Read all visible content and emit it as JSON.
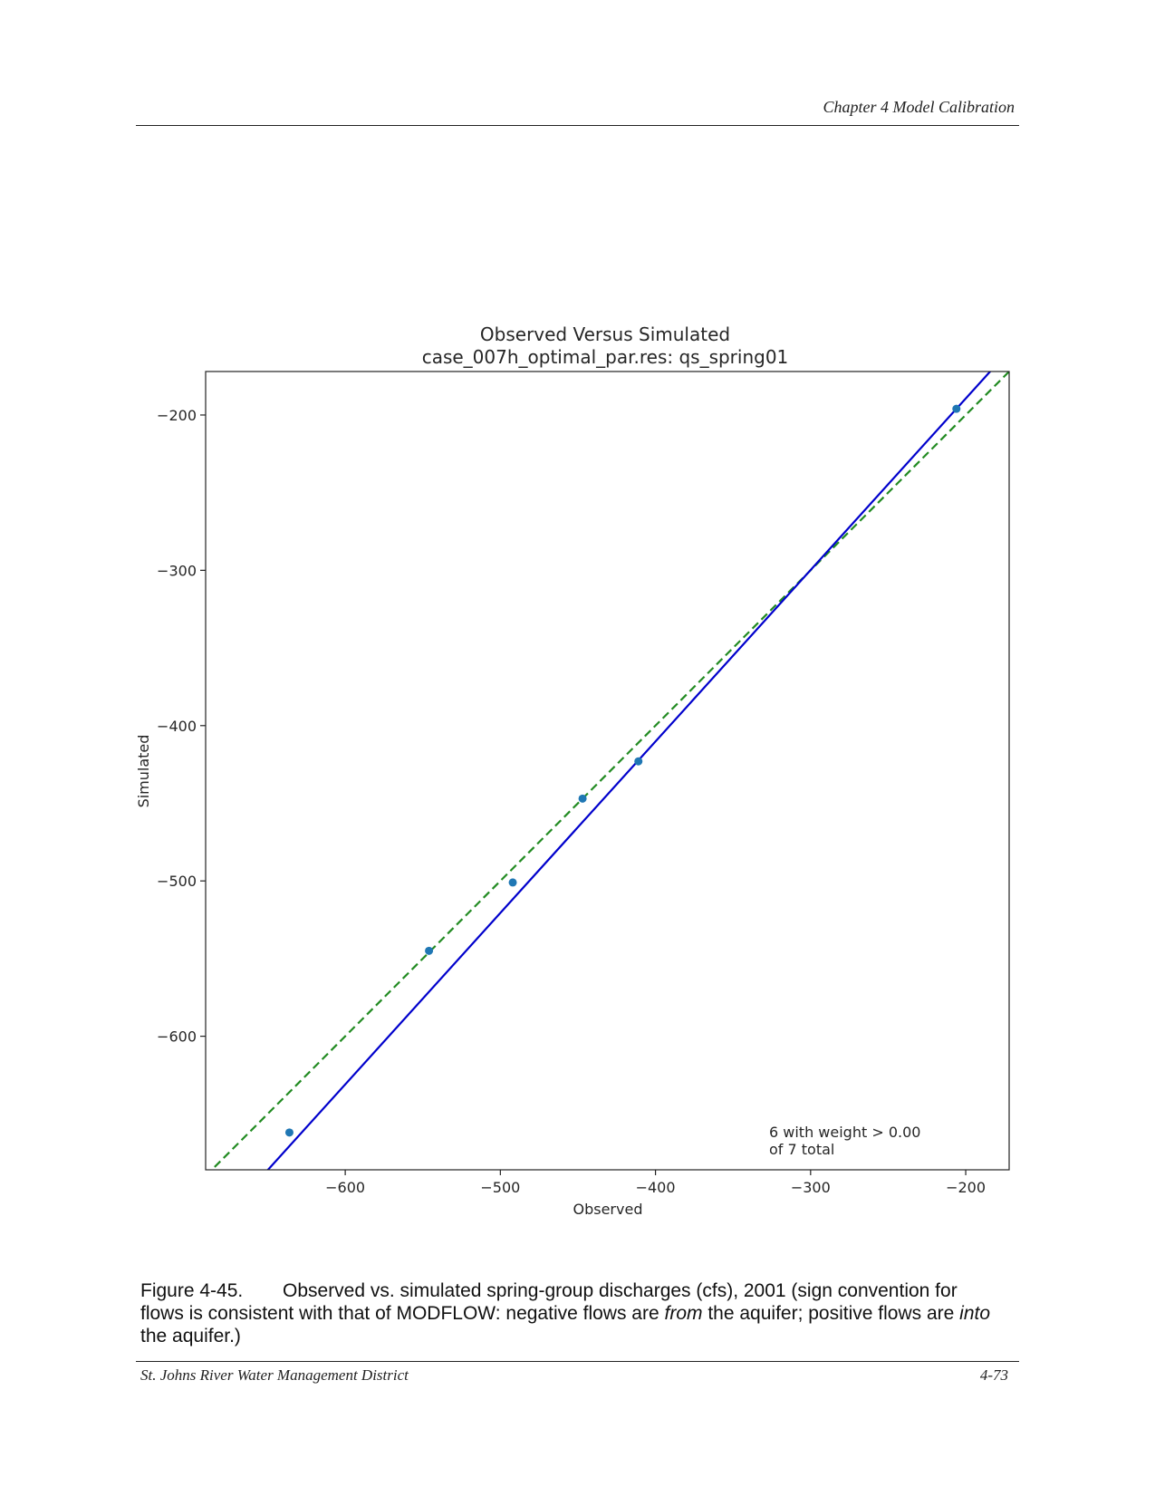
{
  "header": {
    "chapter": "Chapter 4 Model Calibration"
  },
  "chart_data": {
    "type": "scatter",
    "title": "Observed Versus Simulated",
    "subtitle": "case_007h_optimal_par.res: qs_spring01",
    "xlabel": "Observed",
    "ylabel": "Simulated",
    "xlim": [
      -690,
      -172
    ],
    "ylim": [
      -686,
      -172
    ],
    "x_ticks": [
      -600,
      -500,
      -400,
      -300,
      -200
    ],
    "y_ticks": [
      -200,
      -300,
      -400,
      -500,
      -600
    ],
    "x_tick_labels": [
      "−600",
      "−500",
      "−400",
      "−300",
      "−200"
    ],
    "y_tick_labels": [
      "−200",
      "−300",
      "−400",
      "−500",
      "−600"
    ],
    "points": [
      {
        "x": -636,
        "y": -662
      },
      {
        "x": -546,
        "y": -545
      },
      {
        "x": -492,
        "y": -501
      },
      {
        "x": -447,
        "y": -447
      },
      {
        "x": -411,
        "y": -423
      },
      {
        "x": -206,
        "y": -196
      }
    ],
    "fit_line": {
      "slope": 1.104,
      "intercept": 31.4,
      "color": "#0000cc",
      "style": "solid"
    },
    "one_to_one_line": {
      "slope": 1,
      "intercept": 0,
      "color": "#228b22",
      "style": "dashed"
    },
    "point_color": "#1f77b4",
    "annotation": [
      "6 with weight > 0.00",
      "of 7 total"
    ],
    "annotation_position": "bottom-right",
    "grid": false
  },
  "caption": {
    "number": "Figure 4-45.",
    "part1": "Observed vs. simulated spring-group discharges (cfs), 2001 (sign convention for flows is consistent with that of MODFLOW: negative flows are ",
    "em1": "from",
    "part2": " the aquifer; positive flows are ",
    "em2": "into",
    "part3": " the aquifer.)"
  },
  "footer": {
    "left": "St. Johns River Water Management District",
    "right": "4-73"
  }
}
